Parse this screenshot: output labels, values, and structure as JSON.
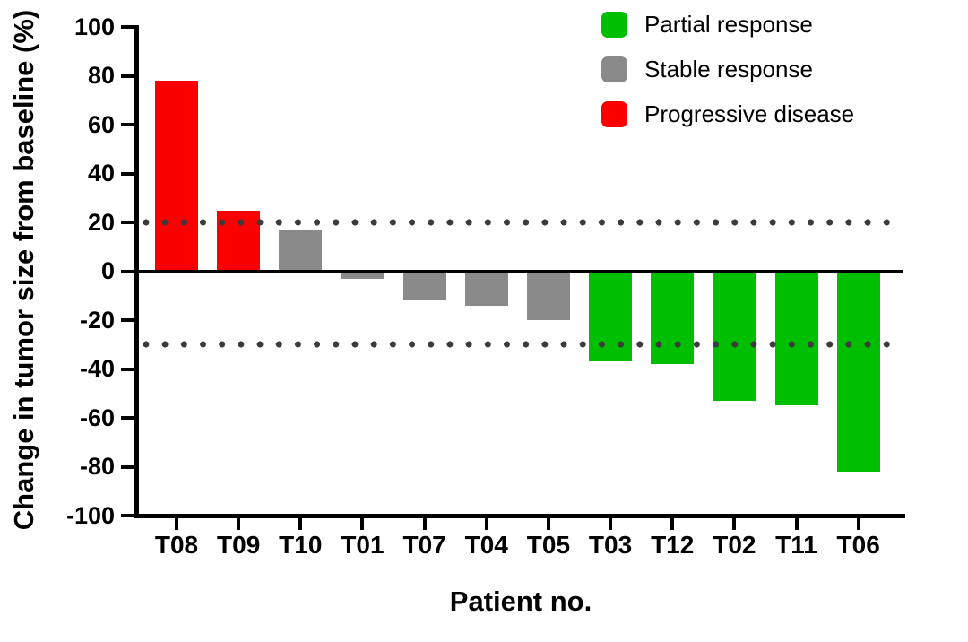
{
  "figure": {
    "ylabel": "Change in tumor size from baseline (%)",
    "xlabel": "Patient no."
  },
  "legend": [
    {
      "key": "partial",
      "label": "Partial response"
    },
    {
      "key": "stable",
      "label": "Stable response"
    },
    {
      "key": "progressive",
      "label": "Progressive disease"
    }
  ],
  "colors": {
    "partial": "#00BE00",
    "stable": "#8A8A8A",
    "progressive": "#FA0000",
    "axis": "#000000",
    "reference_dots": "#3B3B3B",
    "background": "#FFFFFF"
  },
  "chart_data": {
    "type": "bar",
    "title": "",
    "xlabel": "Patient no.",
    "ylabel": "Change in tumor size from baseline (%)",
    "categories": [
      "T08",
      "T09",
      "T10",
      "T01",
      "T07",
      "T04",
      "T05",
      "T03",
      "T12",
      "T02",
      "T11",
      "T06"
    ],
    "values": [
      78,
      25,
      17,
      -3,
      -12,
      -14,
      -20,
      -37,
      -38,
      -53,
      -55,
      -82
    ],
    "series": [
      {
        "name": "Progressive disease",
        "color_key": "progressive",
        "patients": [
          "T08",
          "T09"
        ],
        "values": [
          78,
          25
        ]
      },
      {
        "name": "Stable response",
        "color_key": "stable",
        "patients": [
          "T10",
          "T01",
          "T07",
          "T04",
          "T05"
        ],
        "values": [
          17,
          -3,
          -12,
          -14,
          -20
        ]
      },
      {
        "name": "Partial response",
        "color_key": "partial",
        "patients": [
          "T03",
          "T12",
          "T02",
          "T11",
          "T06"
        ],
        "values": [
          -37,
          -38,
          -53,
          -55,
          -82
        ]
      }
    ],
    "responses": [
      "progressive",
      "progressive",
      "stable",
      "stable",
      "stable",
      "stable",
      "stable",
      "partial",
      "partial",
      "partial",
      "partial",
      "partial"
    ],
    "ylim": [
      -100,
      100
    ],
    "yticks": [
      100,
      80,
      60,
      40,
      20,
      0,
      -20,
      -40,
      -60,
      -80,
      -100
    ],
    "reference_lines": [
      20,
      -30
    ],
    "grid": false,
    "legend_position": "top-right"
  }
}
